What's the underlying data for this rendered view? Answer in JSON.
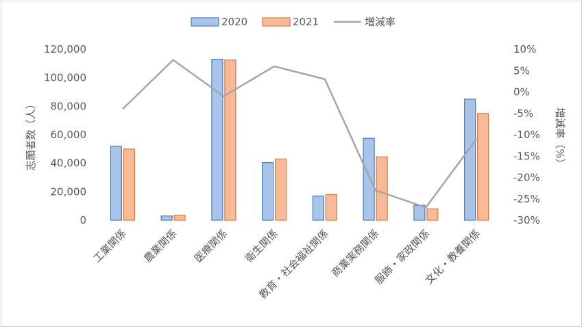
{
  "chart_data": {
    "type": "bar",
    "categories": [
      "工業関係",
      "農業関係",
      "医療関係",
      "衛生関係",
      "教育・社会福祉関係",
      "商業実務関係",
      "服飾・家政関係",
      "文化・教養関係"
    ],
    "series": [
      {
        "name": "2020",
        "type": "bar",
        "axis": "left",
        "values": [
          52000,
          3000,
          113000,
          40500,
          17000,
          57500,
          10500,
          85000
        ]
      },
      {
        "name": "2021",
        "type": "bar",
        "axis": "left",
        "values": [
          50000,
          3500,
          112500,
          43000,
          18000,
          44500,
          8000,
          75000
        ]
      },
      {
        "name": "増減率",
        "type": "line",
        "axis": "right",
        "values": [
          -4,
          7.5,
          -1,
          6,
          3,
          -23,
          -27,
          -11
        ]
      }
    ],
    "ylabel": "志願者数（人）",
    "y2label": "増減率（%）",
    "ylim": [
      0,
      120000
    ],
    "y2lim": [
      -30,
      10
    ],
    "yticks": [
      "0",
      "20,000",
      "40,000",
      "60,000",
      "80,000",
      "100,000",
      "120,000"
    ],
    "y2ticks": [
      "-30%",
      "-25%",
      "-20%",
      "-15%",
      "-10%",
      "-5%",
      "0%",
      "5%",
      "10%"
    ],
    "legend_position": "top",
    "grid": false,
    "colors": {
      "bar2020_fill": "#a9c4eb",
      "bar2020_stroke": "#4a7ebb",
      "bar2021_fill": "#f8b996",
      "bar2021_stroke": "#e0783e",
      "line": "#a5a5a5"
    }
  }
}
